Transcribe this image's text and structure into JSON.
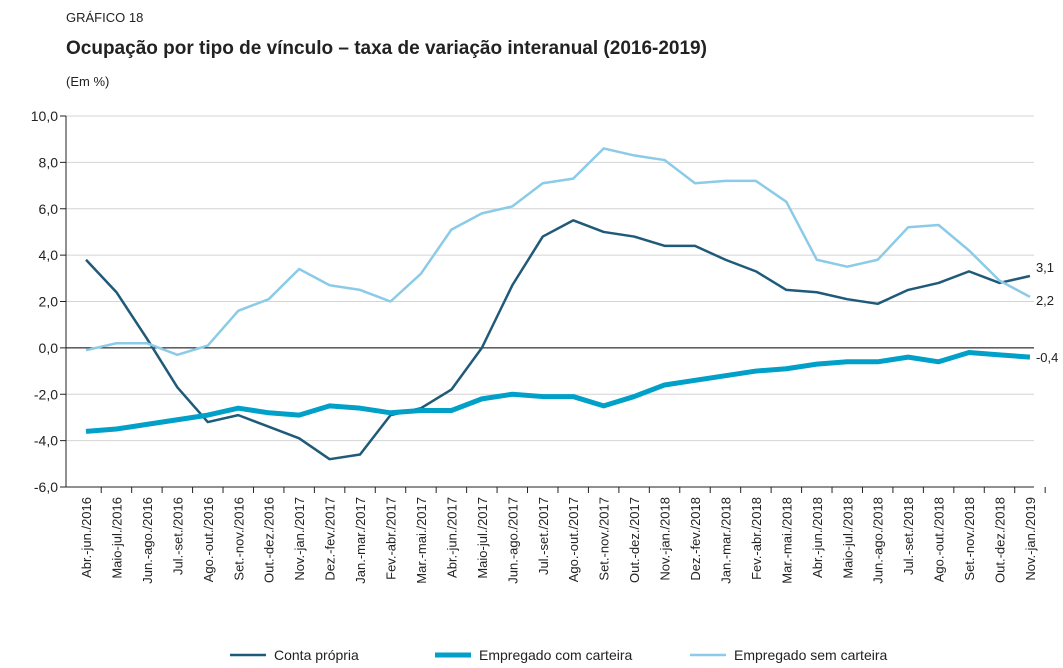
{
  "chart_data": {
    "type": "line",
    "label": "GRÁFICO 18",
    "title": "Ocupação por tipo de vínculo – taxa de variação interanual (2016-2019)",
    "subtitle": "(Em %)",
    "categories": [
      "Abr.-jun./2016",
      "Maio-jul./2016",
      "Jun.-ago./2016",
      "Jul.-set./2016",
      "Ago.-out./2016",
      "Set.-nov./2016",
      "Out.-dez./2016",
      "Nov.-jan./2017",
      "Dez.-fev./2017",
      "Jan.-mar./2017",
      "Fev.-abr./2017",
      "Mar.-mai./2017",
      "Abr.-jun./2017",
      "Maio-jul./2017",
      "Jun.-ago./2017",
      "Jul.-set./2017",
      "Ago.-out./2017",
      "Set.-nov./2017",
      "Out.-dez./2017",
      "Nov.-jan./2018",
      "Dez.-fev./2018",
      "Jan.-mar./2018",
      "Fev.-abr./2018",
      "Mar.-mai./2018",
      "Abr.-jun./2018",
      "Maio-jul./2018",
      "Jun.-ago./2018",
      "Jul.-set./2018",
      "Ago.-out./2018",
      "Set.-nov./2018",
      "Out.-dez./2018",
      "Nov.-jan./2019"
    ],
    "series": [
      {
        "name": "Conta própria",
        "color": "#1f5a78",
        "width": 2.5,
        "values": [
          3.8,
          2.4,
          0.4,
          -1.7,
          -3.2,
          -2.9,
          -3.4,
          -3.9,
          -4.8,
          -4.6,
          -2.9,
          -2.6,
          -1.8,
          0.0,
          2.7,
          4.8,
          5.5,
          5.0,
          4.8,
          4.4,
          4.4,
          3.8,
          3.3,
          2.5,
          2.4,
          2.1,
          1.9,
          2.5,
          2.8,
          3.3,
          2.8,
          3.1
        ],
        "value_labels": [
          null,
          null,
          null,
          null,
          null,
          null,
          null,
          null,
          null,
          null,
          null,
          null,
          null,
          null,
          null,
          null,
          null,
          null,
          null,
          null,
          null,
          null,
          null,
          null,
          null,
          null,
          null,
          null,
          null,
          null,
          null,
          "3,1"
        ]
      },
      {
        "name": "Empregado com carteira",
        "color": "#00a0c8",
        "width": 5,
        "values": [
          -3.6,
          -3.5,
          -3.3,
          -3.1,
          -2.9,
          -2.6,
          -2.8,
          -2.9,
          -2.5,
          -2.6,
          -2.8,
          -2.7,
          -2.7,
          -2.2,
          -2.0,
          -2.1,
          -2.1,
          -2.5,
          -2.1,
          -1.6,
          -1.4,
          -1.2,
          -1.0,
          -0.9,
          -0.7,
          -0.6,
          -0.6,
          -0.4,
          -0.6,
          -0.2,
          -0.3,
          -0.4
        ],
        "value_labels": [
          null,
          null,
          null,
          null,
          null,
          null,
          null,
          null,
          null,
          null,
          null,
          null,
          null,
          null,
          null,
          null,
          null,
          null,
          null,
          null,
          null,
          null,
          null,
          null,
          null,
          null,
          null,
          null,
          null,
          null,
          null,
          "-0,4"
        ]
      },
      {
        "name": "Empregado sem carteira",
        "color": "#8ccbe8",
        "width": 2.5,
        "values": [
          -0.1,
          0.2,
          0.2,
          -0.3,
          0.1,
          1.6,
          2.1,
          3.4,
          2.7,
          2.5,
          2.0,
          3.2,
          5.1,
          5.8,
          6.1,
          7.1,
          7.3,
          8.6,
          8.3,
          8.1,
          7.1,
          7.2,
          7.2,
          6.3,
          3.8,
          3.5,
          3.8,
          5.2,
          5.3,
          4.2,
          2.9,
          2.2
        ],
        "value_labels": [
          null,
          null,
          null,
          null,
          null,
          null,
          null,
          null,
          null,
          null,
          null,
          null,
          null,
          null,
          null,
          null,
          null,
          null,
          null,
          null,
          null,
          null,
          null,
          null,
          null,
          null,
          null,
          null,
          null,
          null,
          null,
          "2,2"
        ]
      }
    ],
    "ylim": [
      -6,
      10
    ],
    "yticks": [
      {
        "value": -6,
        "label": "-6,0"
      },
      {
        "value": -4,
        "label": "-4,0"
      },
      {
        "value": -2,
        "label": "-2,0"
      },
      {
        "value": 0,
        "label": "0,0"
      },
      {
        "value": 2,
        "label": "2,0"
      },
      {
        "value": 4,
        "label": "4,0"
      },
      {
        "value": 6,
        "label": "6,0"
      },
      {
        "value": 8,
        "label": "8,0"
      },
      {
        "value": 10,
        "label": "10,0"
      }
    ],
    "grid": true
  }
}
